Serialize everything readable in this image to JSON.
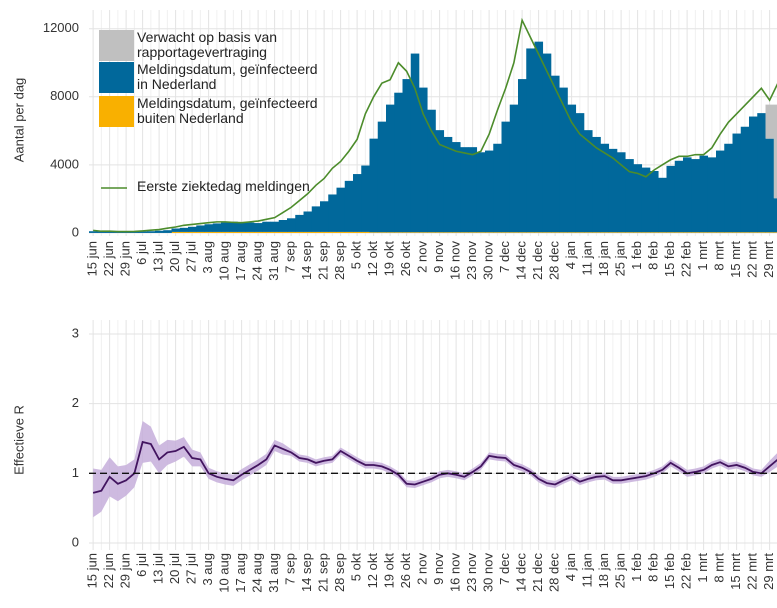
{
  "chart_data": [
    {
      "type": "bar",
      "stacked": true,
      "y_label": "Aantal per dag",
      "categories": [
        "15 jun",
        null,
        "22 jun",
        null,
        "29 jun",
        null,
        "6 jul",
        null,
        "13 jul",
        null,
        "20 jul",
        null,
        "27 jul",
        null,
        "3 aug",
        null,
        "10 aug",
        null,
        "17 aug",
        null,
        "24 aug",
        null,
        "31 aug",
        null,
        "7 sep",
        null,
        "14 sep",
        null,
        "21 sep",
        null,
        "28 sep",
        null,
        "5 okt",
        null,
        "12 okt",
        null,
        "19 okt",
        null,
        "26 okt",
        null,
        "2 nov",
        null,
        "9 nov",
        null,
        "16 nov",
        null,
        "23 nov",
        null,
        "30 nov",
        null,
        "7 dec",
        null,
        "14 dec",
        null,
        "21 dec",
        null,
        "28 dec",
        null,
        "4 jan",
        null,
        "11 jan",
        null,
        "18 jan",
        null,
        "25 jan",
        null,
        "1 feb",
        null,
        "8 feb",
        null,
        "15 feb",
        null,
        "22 feb",
        null,
        "1 mrt",
        null,
        "8 mrt",
        null,
        "15 mrt",
        null,
        "22 mrt",
        null,
        "29 mrt",
        null
      ],
      "series": [
        {
          "name": "Meldingsdatum, geïnfecteerd buiten Nederland",
          "color": "#f9b000",
          "values": [
            0,
            0,
            0,
            0,
            0,
            0,
            0,
            0,
            0,
            0,
            60,
            60,
            60,
            60,
            60,
            60,
            60,
            60,
            60,
            60,
            60,
            60,
            60,
            60,
            60,
            60,
            60,
            60,
            60,
            60,
            60,
            60,
            60,
            60,
            40,
            40,
            40,
            40,
            40,
            40,
            40,
            40,
            40,
            40,
            40,
            40,
            40,
            40,
            40,
            40,
            40,
            40,
            40,
            40,
            40,
            40,
            40,
            40,
            40,
            40,
            40,
            40,
            40,
            40,
            40,
            40,
            40,
            40,
            40,
            40,
            40,
            40,
            40,
            40,
            40,
            40,
            40,
            40,
            40,
            40,
            40,
            40,
            40,
            40
          ]
        },
        {
          "name": "Meldingsdatum, geïnfecteerd in Nederland",
          "color": "#01689b",
          "values": [
            100,
            80,
            90,
            70,
            60,
            70,
            80,
            100,
            130,
            160,
            200,
            240,
            300,
            380,
            450,
            500,
            550,
            600,
            580,
            550,
            520,
            600,
            600,
            700,
            800,
            1000,
            1200,
            1500,
            1800,
            2200,
            2600,
            3000,
            3400,
            3900,
            5500,
            6500,
            7500,
            8200,
            9000,
            10500,
            8500,
            7200,
            6000,
            5600,
            5300,
            5000,
            5000,
            4700,
            4800,
            5200,
            6500,
            7500,
            9000,
            10800,
            11200,
            10500,
            9200,
            8500,
            7500,
            7000,
            6000,
            5600,
            5200,
            4900,
            4700,
            4300,
            4000,
            3800,
            3600,
            3200,
            3900,
            4200,
            4400,
            4300,
            4500,
            4400,
            4800,
            5200,
            5800,
            6200,
            6800,
            7000,
            5500,
            2000
          ]
        },
        {
          "name": "Verwacht op basis van rapportagevertraging",
          "color": "#c0c0c0",
          "values": [
            0,
            0,
            0,
            0,
            0,
            0,
            0,
            0,
            0,
            0,
            0,
            0,
            0,
            0,
            0,
            0,
            0,
            0,
            0,
            0,
            0,
            0,
            0,
            0,
            0,
            0,
            0,
            0,
            0,
            0,
            0,
            0,
            0,
            0,
            0,
            0,
            0,
            0,
            0,
            0,
            0,
            0,
            0,
            0,
            0,
            0,
            0,
            0,
            0,
            0,
            0,
            0,
            0,
            0,
            0,
            0,
            0,
            0,
            0,
            0,
            0,
            0,
            0,
            0,
            0,
            0,
            0,
            0,
            0,
            0,
            0,
            0,
            0,
            0,
            0,
            0,
            0,
            0,
            0,
            0,
            0,
            0,
            2000,
            5500
          ]
        },
        {
          "name": "Eerste ziektedag meldingen",
          "color": "#4c8c2b",
          "type": "line",
          "values": [
            150,
            100,
            100,
            80,
            80,
            90,
            120,
            160,
            200,
            280,
            350,
            450,
            500,
            550,
            600,
            650,
            650,
            620,
            600,
            650,
            700,
            800,
            900,
            1200,
            1500,
            1900,
            2300,
            2800,
            3200,
            3800,
            4200,
            4800,
            5500,
            7000,
            8000,
            8800,
            9000,
            10000,
            9500,
            8500,
            7000,
            6000,
            5200,
            5000,
            4800,
            4700,
            4600,
            4800,
            5800,
            7200,
            8500,
            10000,
            12500,
            11500,
            10500,
            9500,
            8500,
            7500,
            6500,
            5800,
            5400,
            5000,
            4700,
            4400,
            4000,
            3600,
            3500,
            3300,
            3700,
            4000,
            4300,
            4500,
            4500,
            4600,
            4600,
            5000,
            5800,
            6500,
            7000,
            7500,
            8000,
            8500,
            7800,
            8800
          ]
        }
      ],
      "ylim": [
        -180,
        13100
      ],
      "yticks": [
        0,
        4000,
        8000,
        12000
      ],
      "grid": true
    },
    {
      "type": "line",
      "y_label": "Effectieve R",
      "categories": [
        "15 jun",
        null,
        "22 jun",
        null,
        "29 jun",
        null,
        "6 jul",
        null,
        "13 jul",
        null,
        "20 jul",
        null,
        "27 jul",
        null,
        "3 aug",
        null,
        "10 aug",
        null,
        "17 aug",
        null,
        "24 aug",
        null,
        "31 aug",
        null,
        "7 sep",
        null,
        "14 sep",
        null,
        "21 sep",
        null,
        "28 sep",
        null,
        "5 okt",
        null,
        "12 okt",
        null,
        "19 okt",
        null,
        "26 okt",
        null,
        "2 nov",
        null,
        "9 nov",
        null,
        "16 nov",
        null,
        "23 nov",
        null,
        "30 nov",
        null,
        "7 dec",
        null,
        "14 dec",
        null,
        "21 dec",
        null,
        "28 dec",
        null,
        "4 jan",
        null,
        "11 jan",
        null,
        "18 jan",
        null,
        "25 jan",
        null,
        "1 feb",
        null,
        "8 feb",
        null,
        "15 feb",
        null,
        "22 feb",
        null,
        "1 mrt",
        null,
        "8 mrt",
        null,
        "15 mrt",
        null,
        "22 mrt",
        null,
        "29 mrt",
        null
      ],
      "series": [
        {
          "color": "#42145f",
          "band_color": "#c6aedb",
          "values": [
            0.72,
            0.75,
            0.95,
            0.85,
            0.9,
            1.0,
            1.45,
            1.42,
            1.2,
            1.3,
            1.32,
            1.38,
            1.22,
            1.2,
            1.0,
            0.95,
            0.92,
            0.9,
            0.98,
            1.05,
            1.12,
            1.2,
            1.4,
            1.35,
            1.3,
            1.22,
            1.2,
            1.15,
            1.18,
            1.2,
            1.32,
            1.25,
            1.18,
            1.12,
            1.12,
            1.1,
            1.05,
            0.98,
            0.85,
            0.84,
            0.88,
            0.92,
            0.98,
            1.0,
            0.98,
            0.95,
            1.02,
            1.1,
            1.25,
            1.23,
            1.22,
            1.12,
            1.08,
            1.02,
            0.92,
            0.86,
            0.84,
            0.9,
            0.95,
            0.88,
            0.92,
            0.95,
            0.96,
            0.9,
            0.9,
            0.92,
            0.94,
            0.96,
            1.0,
            1.05,
            1.15,
            1.08,
            1.0,
            1.02,
            1.05,
            1.12,
            1.16,
            1.1,
            1.12,
            1.08,
            1.02,
            1.0,
            1.1,
            1.2
          ],
          "ci": [
            0.35,
            0.3,
            0.28,
            0.25,
            0.22,
            0.2,
            0.3,
            0.25,
            0.2,
            0.18,
            0.15,
            0.14,
            0.12,
            0.1,
            0.08,
            0.08,
            0.08,
            0.08,
            0.08,
            0.08,
            0.08,
            0.08,
            0.08,
            0.08,
            0.05,
            0.05,
            0.05,
            0.05,
            0.05,
            0.05,
            0.05,
            0.05,
            0.05,
            0.05,
            0.05,
            0.05,
            0.05,
            0.05,
            0.05,
            0.05,
            0.05,
            0.05,
            0.05,
            0.05,
            0.05,
            0.05,
            0.05,
            0.05,
            0.05,
            0.05,
            0.05,
            0.05,
            0.05,
            0.05,
            0.05,
            0.05,
            0.05,
            0.05,
            0.05,
            0.05,
            0.05,
            0.05,
            0.05,
            0.05,
            0.05,
            0.05,
            0.05,
            0.05,
            0.05,
            0.05,
            0.05,
            0.05,
            0.05,
            0.05,
            0.05,
            0.05,
            0.05,
            0.05,
            0.05,
            0.05,
            0.05,
            0.05,
            0.08,
            0.1
          ]
        }
      ],
      "hline": 1,
      "ylim": [
        -0.1,
        3.2
      ],
      "yticks": [
        0,
        1,
        2,
        3
      ],
      "grid": true
    }
  ]
}
